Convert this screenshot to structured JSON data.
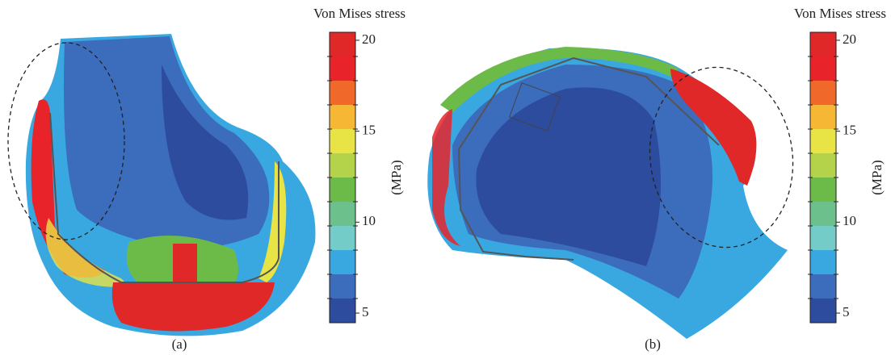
{
  "panels": [
    {
      "label": "(a)",
      "colorbar": {
        "title": "Von Mises stress",
        "unit_label": "(MPa)",
        "lim": [
          4.47,
          20.44
        ],
        "ticks": [
          5,
          10,
          15,
          20
        ],
        "colors": [
          "#e02828",
          "#e8242a",
          "#f0692a",
          "#f6b834",
          "#e8e446",
          "#b4d24a",
          "#6cbb48",
          "#6cc08c",
          "#74ccc8",
          "#3aa8e0",
          "#3c6cbc",
          "#2e4c9e"
        ]
      }
    },
    {
      "label": "(b)",
      "colorbar": {
        "title": "Von Mises stress",
        "unit_label": "(MPa)",
        "lim": [
          4.47,
          20.44
        ],
        "ticks": [
          5,
          10,
          15,
          20
        ],
        "colors": [
          "#e02828",
          "#e8242a",
          "#f0692a",
          "#f6b834",
          "#e8e446",
          "#b4d24a",
          "#6cbb48",
          "#6cc08c",
          "#74ccc8",
          "#3aa8e0",
          "#3c6cbc",
          "#2e4c9e"
        ]
      }
    }
  ]
}
